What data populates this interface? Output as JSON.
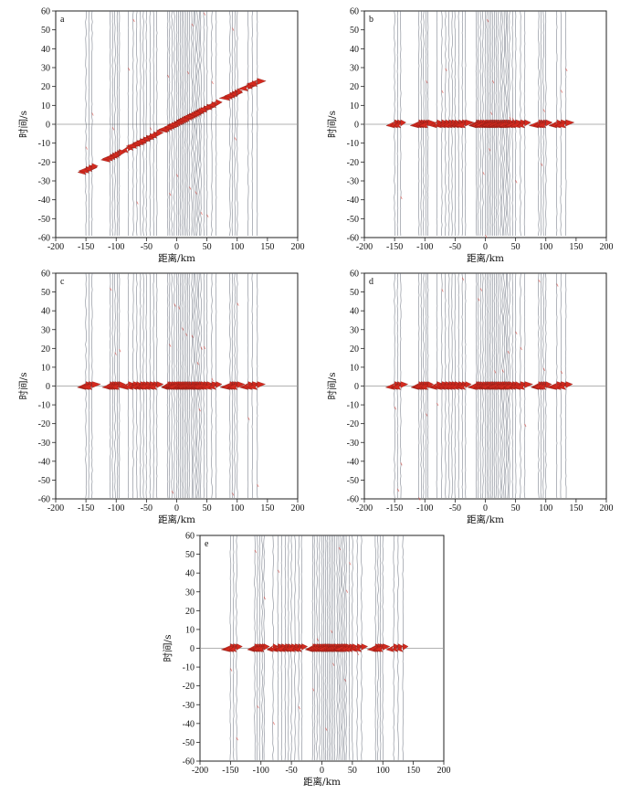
{
  "chart_data": [
    {
      "type": "line",
      "panel_label": "a",
      "xlabel": "距离/km",
      "ylabel": "时间/s",
      "xlim": [
        -200,
        200
      ],
      "ylim": [
        -60,
        60
      ],
      "xticks": [
        -200,
        -150,
        -100,
        -50,
        0,
        50,
        100,
        150,
        200
      ],
      "yticks": [
        -60,
        -50,
        -40,
        -30,
        -20,
        -10,
        0,
        10,
        20,
        30,
        40,
        50,
        60
      ],
      "zero_line": true,
      "arrival": "moveout",
      "trace_color": "#5a6270",
      "signal_color": "#d42a1f"
    },
    {
      "type": "line",
      "panel_label": "b",
      "xlabel": "距离/km",
      "ylabel": "时间/s",
      "xlim": [
        -200,
        200
      ],
      "ylim": [
        -60,
        60
      ],
      "xticks": [
        -200,
        -150,
        -100,
        -50,
        0,
        50,
        100,
        150,
        200
      ],
      "yticks": [
        -60,
        -50,
        -40,
        -30,
        -20,
        -10,
        0,
        10,
        20,
        30,
        40,
        50,
        60
      ],
      "zero_line": true,
      "arrival": "aligned at 0 s",
      "trace_color": "#5a6270",
      "signal_color": "#d42a1f"
    },
    {
      "type": "line",
      "panel_label": "c",
      "xlabel": "距离/km",
      "ylabel": "时间/s",
      "xlim": [
        -200,
        200
      ],
      "ylim": [
        -60,
        60
      ],
      "xticks": [
        -200,
        -150,
        -100,
        -50,
        0,
        50,
        100,
        150,
        200
      ],
      "yticks": [
        -60,
        -50,
        -40,
        -30,
        -20,
        -10,
        0,
        10,
        20,
        30,
        40,
        50,
        60
      ],
      "zero_line": true,
      "arrival": "aligned at 0 s",
      "trace_color": "#5a6270",
      "signal_color": "#d42a1f"
    },
    {
      "type": "line",
      "panel_label": "d",
      "xlabel": "距离/km",
      "ylabel": "时间/s",
      "xlim": [
        -200,
        200
      ],
      "ylim": [
        -60,
        60
      ],
      "xticks": [
        -200,
        -150,
        -100,
        -50,
        0,
        50,
        100,
        150,
        200
      ],
      "yticks": [
        -60,
        -50,
        -40,
        -30,
        -20,
        -10,
        0,
        10,
        20,
        30,
        40,
        50,
        60
      ],
      "zero_line": true,
      "arrival": "aligned at 0 s",
      "trace_color": "#5a6270",
      "signal_color": "#d42a1f"
    },
    {
      "type": "line",
      "panel_label": "e",
      "xlabel": "距离/km",
      "ylabel": "时间/s",
      "xlim": [
        -200,
        200
      ],
      "ylim": [
        -60,
        60
      ],
      "xticks": [
        -200,
        -150,
        -100,
        -50,
        0,
        50,
        100,
        150,
        200
      ],
      "yticks": [
        -60,
        -50,
        -40,
        -30,
        -20,
        -10,
        0,
        10,
        20,
        30,
        40,
        50,
        60
      ],
      "zero_line": true,
      "arrival": "aligned at 0 s",
      "trace_color": "#5a6270",
      "signal_color": "#d42a1f"
    }
  ],
  "station_distances_km": [
    -150,
    -145,
    -140,
    -110,
    -106,
    -102,
    -98,
    -95,
    -80,
    -72,
    -66,
    -60,
    -55,
    -50,
    -44,
    -38,
    -33,
    -15,
    -12,
    -8,
    -4,
    0,
    3,
    6,
    9,
    12,
    15,
    18,
    21,
    25,
    28,
    31,
    34,
    37,
    40,
    45,
    50,
    58,
    65,
    88,
    92,
    96,
    100,
    118,
    125,
    133
  ]
}
